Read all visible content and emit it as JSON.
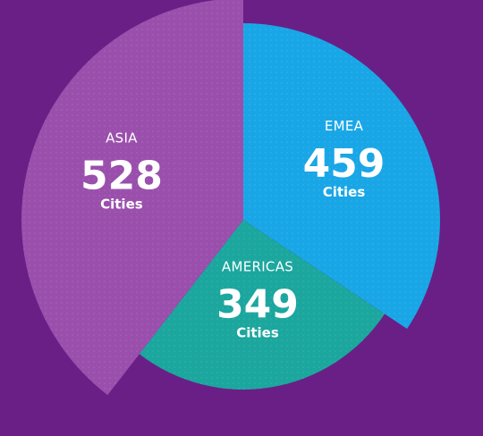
{
  "chart_data": {
    "type": "pie",
    "categories": [
      "ASIA",
      "EMEA",
      "AMERICAS"
    ],
    "values": [
      528,
      459,
      349
    ],
    "unit": "Cities",
    "colors": [
      "#9a4fac",
      "#19a6e6",
      "#1ba69e"
    ],
    "background": "#6a1f86",
    "legend": "none"
  }
}
